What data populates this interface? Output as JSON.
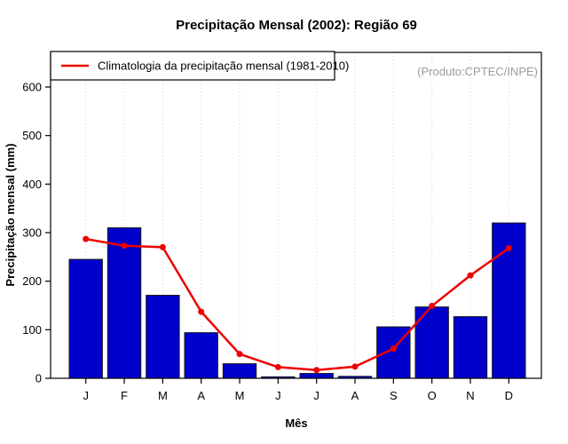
{
  "chart_data": {
    "type": "bar",
    "title": "Precipitação Mensal (2002): Região 69",
    "xlabel": "Mês",
    "ylabel": "Precipitação mensal (mm)",
    "annotation": "(Produto:CPTEC/INPE)",
    "categories": [
      "J",
      "F",
      "M",
      "A",
      "M",
      "J",
      "J",
      "A",
      "S",
      "O",
      "N",
      "D"
    ],
    "yticks": [
      0,
      100,
      200,
      300,
      400,
      500,
      600
    ],
    "ylim": [
      0,
      670
    ],
    "grid": "vertical-dotted",
    "legend_position": "top-left",
    "series": [
      {
        "name": "2002",
        "type": "bar",
        "color": "#0000CD",
        "values": [
          245,
          310,
          171,
          94,
          30,
          3,
          10,
          4,
          106,
          147,
          127,
          320
        ]
      },
      {
        "name": "Climatologia da precipitação mensal (1981-2010)",
        "type": "line",
        "color": "#EE0000",
        "values": [
          287,
          273,
          270,
          137,
          50,
          23,
          17,
          24,
          61,
          149,
          212,
          268
        ]
      }
    ],
    "colors": {
      "bar_fill": "#0000CD",
      "bar_stroke": "#1a1a1a",
      "line": "#EE0000",
      "grid": "#d6d6d6",
      "credit_gray": "#9c9c9c"
    }
  }
}
